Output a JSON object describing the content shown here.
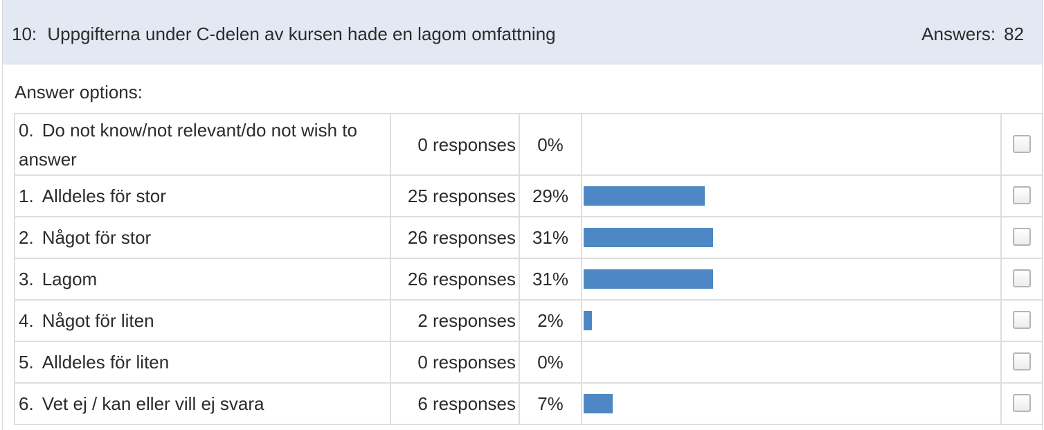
{
  "question": {
    "number": "10:",
    "title": "Uppgifterna under C-delen av kursen hade en lagom omfattning",
    "answers_label": "Answers:",
    "answers_count": "82"
  },
  "options_label": "Answer options:",
  "options": [
    {
      "num": "0.",
      "label": "Do not know/not relevant/do not wish to answer",
      "responses": "0 responses",
      "percent": "0%",
      "value": 0
    },
    {
      "num": "1.",
      "label": "Alldeles för stor",
      "responses": "25 responses",
      "percent": "29%",
      "value": 29
    },
    {
      "num": "2.",
      "label": "Något för stor",
      "responses": "26 responses",
      "percent": "31%",
      "value": 31
    },
    {
      "num": "3.",
      "label": "Lagom",
      "responses": "26 responses",
      "percent": "31%",
      "value": 31
    },
    {
      "num": "4.",
      "label": "Något för liten",
      "responses": "2 responses",
      "percent": "2%",
      "value": 2
    },
    {
      "num": "5.",
      "label": "Alldeles för liten",
      "responses": "0 responses",
      "percent": "0%",
      "value": 0
    },
    {
      "num": "6.",
      "label": "Vet ej / kan eller vill ej svara",
      "responses": "6 responses",
      "percent": "7%",
      "value": 7
    }
  ],
  "colors": {
    "bar": "#4d88c4",
    "header_bg": "#e2e9f3"
  },
  "icons": {
    "select": "checkbox-icon"
  }
}
